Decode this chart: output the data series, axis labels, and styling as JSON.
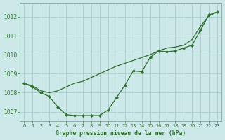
{
  "title": "Graphe pression niveau de la mer (hPa)",
  "background_color": "#cde8e8",
  "grid_color": "#b0d0d0",
  "line_color": "#2d6e2d",
  "xlim": [
    -0.5,
    23.5
  ],
  "ylim": [
    1006.5,
    1012.7
  ],
  "yticks": [
    1007,
    1008,
    1009,
    1010,
    1011,
    1012
  ],
  "xticks": [
    0,
    1,
    2,
    3,
    4,
    5,
    6,
    7,
    8,
    9,
    10,
    11,
    12,
    13,
    14,
    15,
    16,
    17,
    18,
    19,
    20,
    21,
    22,
    23
  ],
  "series_jagged_y": [
    1008.5,
    1008.3,
    1008.0,
    1007.8,
    1007.25,
    1006.85,
    1006.8,
    1006.8,
    1006.8,
    1006.8,
    1007.1,
    1007.75,
    1008.4,
    1009.15,
    1009.1,
    1009.85,
    1010.2,
    1010.15,
    1010.2,
    1010.35,
    1010.5,
    1011.3,
    1012.1,
    1012.25
  ],
  "series_smooth_y": [
    1008.5,
    1008.35,
    1008.1,
    1008.0,
    1008.1,
    1008.3,
    1008.5,
    1008.6,
    1008.8,
    1009.0,
    1009.2,
    1009.4,
    1009.55,
    1009.7,
    1009.85,
    1010.0,
    1010.2,
    1010.35,
    1010.4,
    1010.5,
    1010.8,
    1011.5,
    1012.05,
    1012.25
  ]
}
